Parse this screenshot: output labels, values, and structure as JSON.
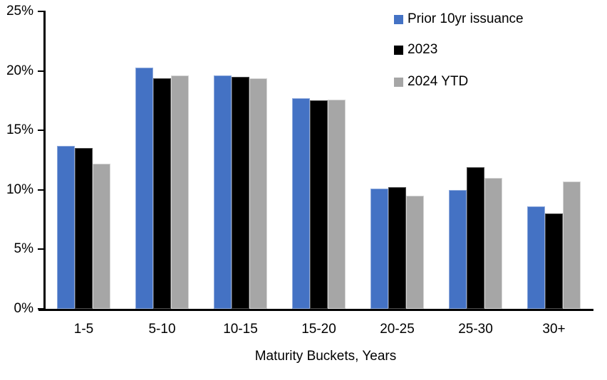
{
  "chart_data": {
    "type": "bar",
    "title": "",
    "xlabel": "Maturity Buckets, Years",
    "ylabel": "",
    "categories": [
      "1-5",
      "5-10",
      "10-15",
      "15-20",
      "20-25",
      "25-30",
      "30+"
    ],
    "series": [
      {
        "name": "Prior 10yr issuance",
        "color": "#4472C4",
        "edge_color": "#8FAADC",
        "values": [
          13.7,
          20.3,
          19.6,
          17.7,
          10.1,
          10.0,
          8.6
        ]
      },
      {
        "name": "2023",
        "color": "#000000",
        "edge_color": "#4D4D4D",
        "values": [
          13.5,
          19.4,
          19.5,
          17.5,
          10.2,
          11.9,
          8.0
        ]
      },
      {
        "name": "2024 YTD",
        "color": "#A6A6A6",
        "edge_color": "#D6D6D6",
        "values": [
          12.2,
          19.6,
          19.4,
          17.6,
          9.5,
          11.0,
          10.7
        ]
      }
    ],
    "ylim": [
      0,
      25
    ],
    "yticks": [
      0,
      5,
      10,
      15,
      20,
      25
    ],
    "ytick_suffix": "%",
    "grid": false,
    "legend_position": "top-right",
    "axis_color": "#000000",
    "background_color": "#FFFFFF"
  }
}
